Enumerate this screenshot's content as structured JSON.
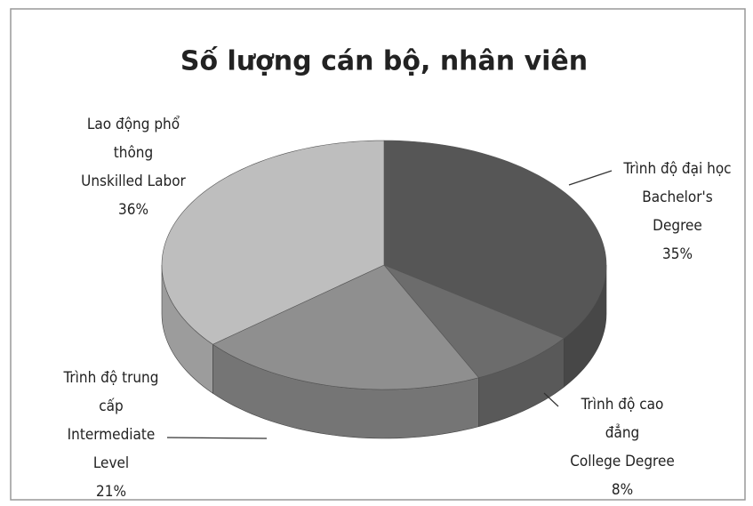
{
  "chart_data": {
    "type": "pie",
    "title": "Số lượng cán bộ, nhân viên",
    "categories": [
      [
        "Trình độ đại học",
        "Bachelor's",
        "Degree"
      ],
      [
        "Trình độ cao",
        "đẳng",
        "College Degree"
      ],
      [
        "Trình độ trung",
        "cấp",
        "Intermediate",
        "Level"
      ],
      [
        "Lao động phổ",
        "thông",
        "Unskilled Labor"
      ]
    ],
    "values": [
      35,
      8,
      21,
      36
    ],
    "value_labels": [
      "35%",
      "8%",
      "21%",
      "36%"
    ],
    "colors": [
      "#565656",
      "#6c6c6c",
      "#8f8f8f",
      "#bebebe"
    ]
  }
}
